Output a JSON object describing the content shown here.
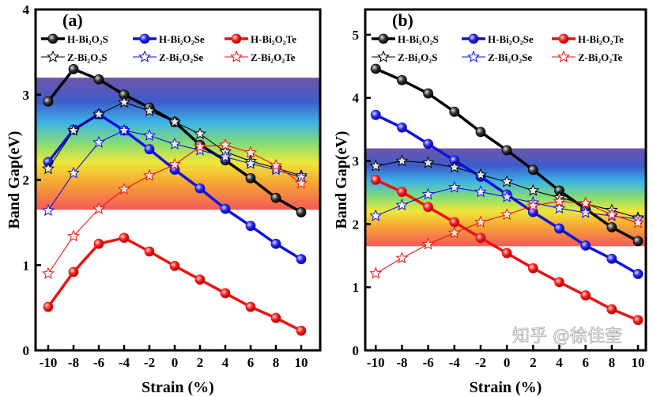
{
  "colors": {
    "S": "#000000",
    "Se": "#1010e0",
    "Te": "#ee1111"
  },
  "watermark": "知乎 @徐佳奎",
  "chart_data": [
    {
      "type": "line",
      "panel_label": "(a)",
      "xlabel": "Strain (%)",
      "ylabel": "Band Gap(eV)",
      "x": [
        -10,
        -8,
        -6,
        -4,
        -2,
        0,
        2,
        4,
        6,
        8,
        10
      ],
      "xticks": [
        -10,
        -8,
        -6,
        -4,
        -2,
        0,
        2,
        4,
        6,
        8,
        10
      ],
      "yticks": [
        0,
        1,
        2,
        3,
        4
      ],
      "xlim": [
        -11,
        11.5
      ],
      "ylim": [
        0,
        4
      ],
      "visible_band": [
        1.65,
        3.2
      ],
      "legend": "top",
      "series": [
        {
          "name": "H-Bi₂O₂S",
          "color": "#000000",
          "marker": "sphere",
          "values": [
            2.92,
            3.3,
            3.18,
            3.0,
            2.85,
            2.68,
            2.41,
            2.23,
            2.02,
            1.79,
            1.62
          ]
        },
        {
          "name": "H-Bi₂O₂Se",
          "color": "#1010e0",
          "marker": "sphere",
          "values": [
            2.21,
            2.59,
            2.77,
            2.58,
            2.36,
            2.12,
            1.9,
            1.66,
            1.46,
            1.25,
            1.07
          ]
        },
        {
          "name": "H-Bi₂O₂Te",
          "color": "#ee1111",
          "marker": "sphere",
          "values": [
            0.51,
            0.92,
            1.25,
            1.32,
            1.16,
            0.99,
            0.83,
            0.67,
            0.51,
            0.38,
            0.23
          ]
        },
        {
          "name": "Z-Bi₂O₂S",
          "color": "#000000",
          "marker": "star",
          "values": [
            2.13,
            2.58,
            2.77,
            2.91,
            2.81,
            2.68,
            2.54,
            2.33,
            2.22,
            2.14,
            2.05
          ]
        },
        {
          "name": "Z-Bi₂O₂Se",
          "color": "#1010e0",
          "marker": "star",
          "values": [
            1.64,
            2.08,
            2.44,
            2.58,
            2.52,
            2.42,
            2.35,
            2.27,
            2.19,
            2.12,
            2.03
          ]
        },
        {
          "name": "Z-Bi₂O₂Te",
          "color": "#ee1111",
          "marker": "star",
          "values": [
            0.9,
            1.34,
            1.66,
            1.89,
            2.05,
            2.18,
            2.39,
            2.41,
            2.32,
            2.17,
            1.96
          ]
        }
      ]
    },
    {
      "type": "line",
      "panel_label": "(b)",
      "xlabel": "Strain (%)",
      "ylabel": "Band Gap(eV)",
      "x": [
        -10,
        -8,
        -6,
        -4,
        -2,
        0,
        2,
        4,
        6,
        8,
        10
      ],
      "xticks": [
        -10,
        -8,
        -6,
        -4,
        -2,
        0,
        2,
        4,
        6,
        8,
        10
      ],
      "yticks": [
        0,
        1,
        2,
        3,
        4,
        5
      ],
      "xlim": [
        -10.8,
        10.6
      ],
      "ylim": [
        0,
        5.4
      ],
      "visible_band": [
        1.65,
        3.2
      ],
      "legend": "top",
      "series": [
        {
          "name": "H-Bi₂O₂S",
          "color": "#000000",
          "marker": "sphere",
          "values": [
            4.46,
            4.28,
            4.07,
            3.78,
            3.46,
            3.17,
            2.86,
            2.53,
            2.24,
            1.95,
            1.73
          ]
        },
        {
          "name": "H-Bi₂O₂Se",
          "color": "#1010e0",
          "marker": "sphere",
          "values": [
            3.73,
            3.53,
            3.27,
            3.01,
            2.75,
            2.47,
            2.19,
            1.93,
            1.66,
            1.45,
            1.21
          ]
        },
        {
          "name": "H-Bi₂O₂Te",
          "color": "#ee1111",
          "marker": "sphere",
          "values": [
            2.7,
            2.51,
            2.27,
            2.03,
            1.78,
            1.54,
            1.3,
            1.08,
            0.87,
            0.65,
            0.48
          ]
        },
        {
          "name": "Z-Bi₂O₂S",
          "color": "#000000",
          "marker": "star",
          "values": [
            2.92,
            3.0,
            2.97,
            2.9,
            2.78,
            2.67,
            2.53,
            2.42,
            2.32,
            2.22,
            2.1
          ]
        },
        {
          "name": "Z-Bi₂O₂Se",
          "color": "#1010e0",
          "marker": "star",
          "values": [
            2.13,
            2.3,
            2.47,
            2.58,
            2.51,
            2.43,
            2.34,
            2.25,
            2.18,
            2.13,
            2.08
          ]
        },
        {
          "name": "Z-Bi₂O₂Te",
          "color": "#ee1111",
          "marker": "star",
          "values": [
            1.22,
            1.46,
            1.68,
            1.86,
            2.03,
            2.15,
            2.29,
            2.36,
            2.33,
            2.15,
            2.02
          ]
        }
      ]
    }
  ]
}
